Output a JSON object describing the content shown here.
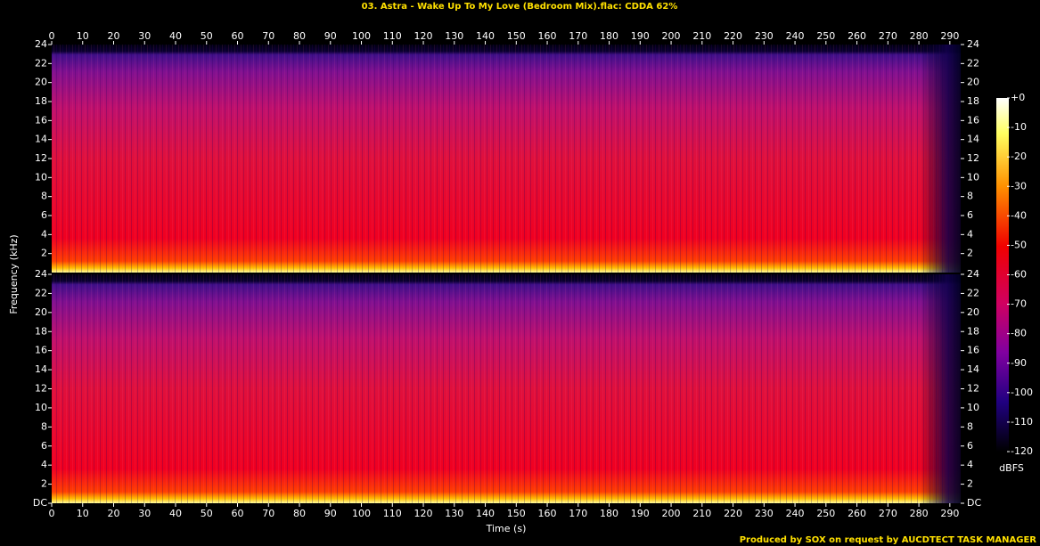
{
  "chart_data": {
    "type": "spectrogram",
    "title": "03. Astra - Wake Up To My Love (Bedroom Mix).flac: CDDA 62%",
    "xlabel": "Time (s)",
    "ylabel": "Frequency (kHz)",
    "xlim": [
      0,
      293.5
    ],
    "xticks": [
      0,
      10,
      20,
      30,
      40,
      50,
      60,
      70,
      80,
      90,
      100,
      110,
      120,
      130,
      140,
      150,
      160,
      170,
      180,
      190,
      200,
      210,
      220,
      230,
      240,
      250,
      260,
      270,
      280,
      290
    ],
    "channels": [
      {
        "ylim": [
          0,
          24
        ],
        "yticks": [
          2,
          4,
          6,
          8,
          10,
          12,
          14,
          16,
          18,
          20,
          22,
          24
        ]
      },
      {
        "ylim": [
          0,
          24
        ],
        "yticks": [
          {
            "value": 0,
            "label": "DC"
          },
          2,
          4,
          6,
          8,
          10,
          12,
          14,
          16,
          18,
          20,
          22,
          24
        ]
      }
    ],
    "colorbar": {
      "label": "dBFS",
      "lim": [
        -120,
        0
      ],
      "ticks": [
        {
          "value": 0,
          "label": "+0"
        },
        -10,
        -20,
        -30,
        -40,
        -50,
        -60,
        -70,
        -80,
        -90,
        -100,
        -110,
        -120
      ]
    },
    "footer": "Produced by SOX on request by AUCDTECT TASK MANAGER"
  }
}
